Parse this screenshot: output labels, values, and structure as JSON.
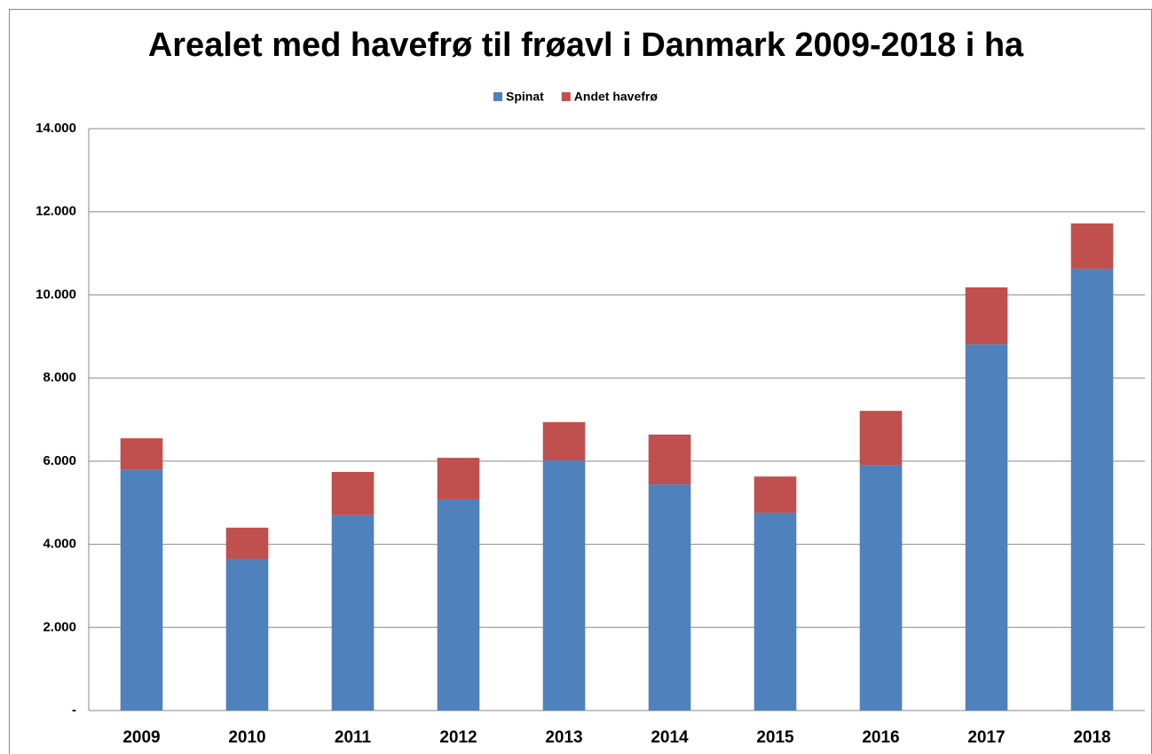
{
  "chart_data": {
    "type": "stacked_bar",
    "title": "Arealet med havefrø til frøavl i Danmark 2009-2018 i ha",
    "categories": [
      "2009",
      "2010",
      "2011",
      "2012",
      "2013",
      "2014",
      "2015",
      "2016",
      "2017",
      "2018"
    ],
    "series": [
      {
        "name": "Spinat",
        "color": "#4f81bd",
        "values": [
          5800,
          3650,
          4700,
          5080,
          6020,
          5440,
          4760,
          5910,
          8810,
          10630
        ]
      },
      {
        "name": "Andet havefrø",
        "color": "#c0504d",
        "values": [
          750,
          750,
          1040,
          1000,
          920,
          1200,
          870,
          1300,
          1370,
          1090
        ]
      }
    ],
    "ylim": [
      0,
      14000
    ],
    "yticks": [
      {
        "value": 0,
        "label": "-"
      },
      {
        "value": 2000,
        "label": "2.000"
      },
      {
        "value": 4000,
        "label": "4.000"
      },
      {
        "value": 6000,
        "label": "6.000"
      },
      {
        "value": 8000,
        "label": "8.000"
      },
      {
        "value": 10000,
        "label": "10.000"
      },
      {
        "value": 12000,
        "label": "12.000"
      },
      {
        "value": 14000,
        "label": "14.000"
      }
    ],
    "grid": true,
    "legend": "top"
  }
}
